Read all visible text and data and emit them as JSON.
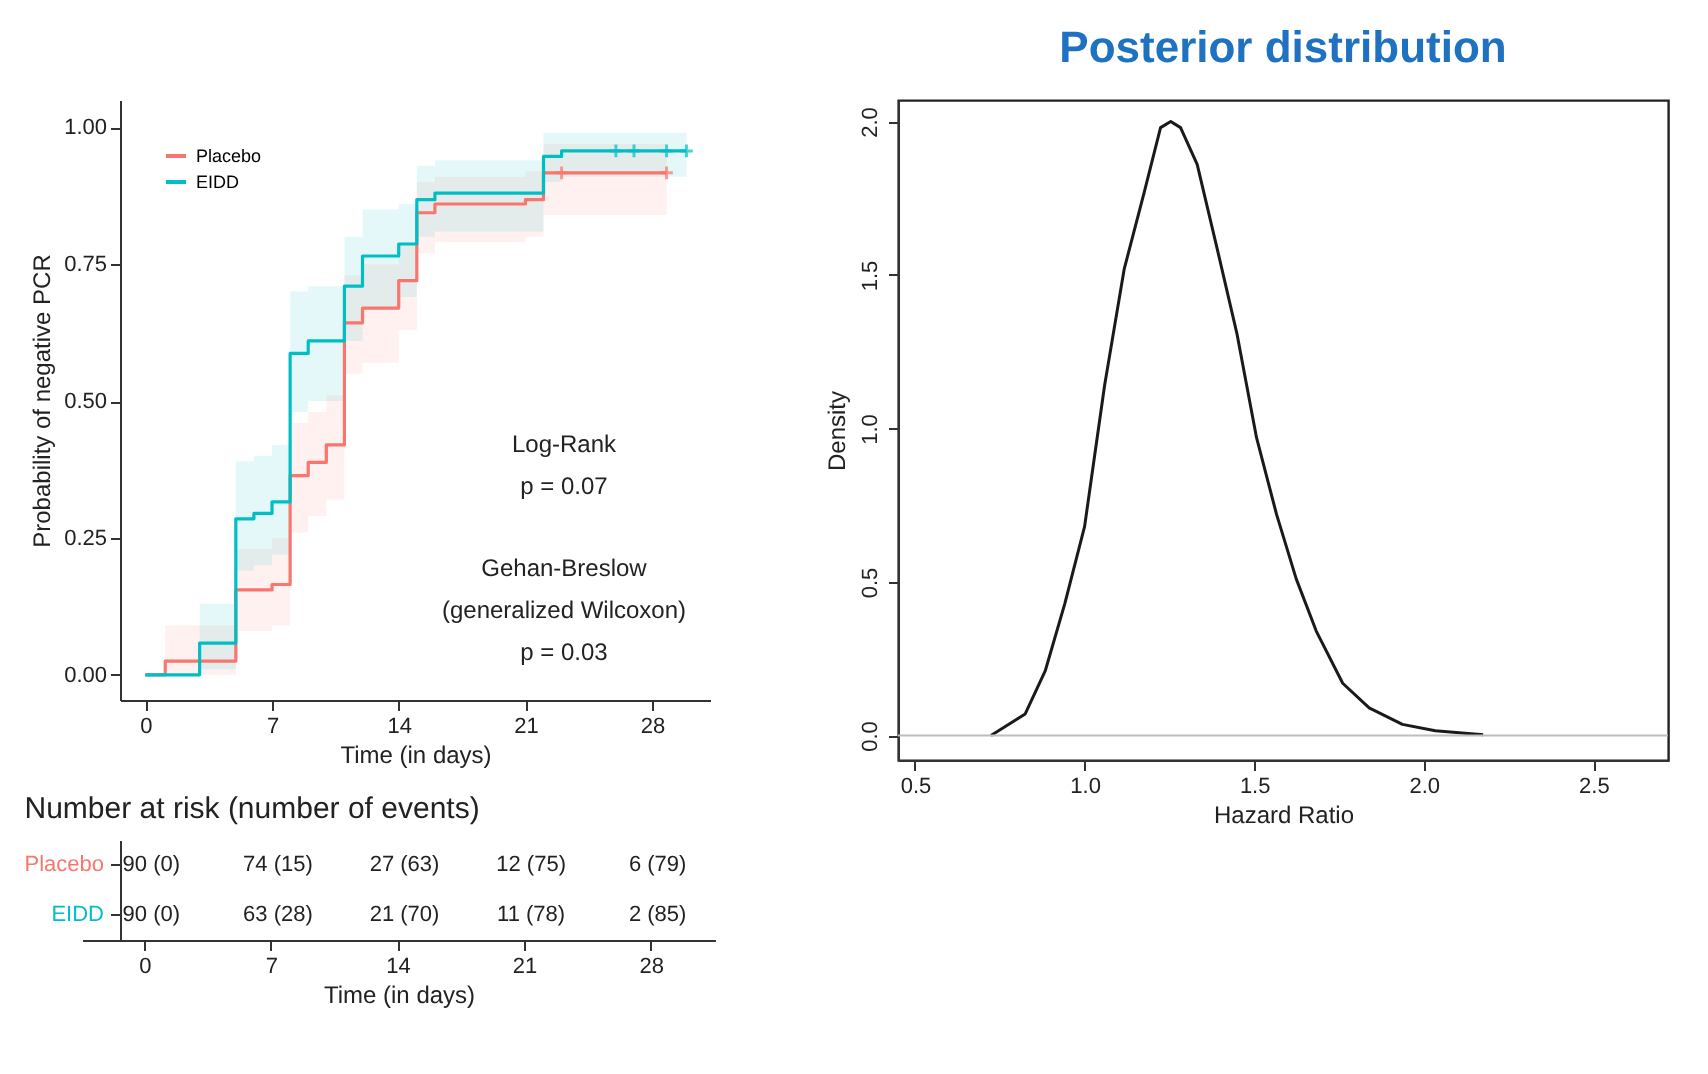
{
  "chart_data": [
    {
      "type": "step",
      "xlabel": "Time (in days)",
      "ylabel": "Probability of negative PCR",
      "xlim": [
        -1.4,
        31.2
      ],
      "ylim": [
        -0.046,
        1.05
      ],
      "xticks": [
        0,
        7,
        14,
        21,
        28
      ],
      "yticks": [
        {
          "value": 0,
          "label": "0.00"
        },
        {
          "value": 0.25,
          "label": "0.25"
        },
        {
          "value": 0.5,
          "label": "0.50"
        },
        {
          "value": 0.75,
          "label": "0.75"
        },
        {
          "value": 1,
          "label": "1.00"
        }
      ],
      "legend": "top left",
      "annotations": [
        "Log-Rank",
        "p =  0.07",
        "Gehan-Breslow",
        "(generalized Wilcoxon)",
        "p =  0.03"
      ],
      "series": [
        {
          "name": "Placebo",
          "color": "#f8766d",
          "x": [
            0,
            1.1,
            5,
            7,
            8,
            9,
            10,
            11,
            12,
            14,
            15,
            16,
            21,
            22,
            28.8
          ],
          "values": [
            0,
            0.025,
            0.155,
            0.165,
            0.364,
            0.388,
            0.42,
            0.643,
            0.67,
            0.72,
            0.844,
            0.86,
            0.868,
            0.917,
            0.917
          ],
          "lower": [
            0,
            0,
            0.08,
            0.09,
            0.26,
            0.29,
            0.32,
            0.55,
            0.57,
            0.63,
            0.77,
            0.79,
            0.8,
            0.84,
            0.84
          ],
          "upper": [
            0,
            0.09,
            0.23,
            0.25,
            0.46,
            0.48,
            0.51,
            0.73,
            0.75,
            0.79,
            0.9,
            0.91,
            0.92,
            0.97,
            0.97
          ]
        },
        {
          "name": "EIDD",
          "color": "#00bfc4",
          "x": [
            0,
            3,
            5,
            6,
            7,
            8,
            9,
            11,
            12,
            14,
            15,
            16,
            22,
            23,
            29.9
          ],
          "values": [
            0,
            0.058,
            0.285,
            0.295,
            0.316,
            0.587,
            0.61,
            0.71,
            0.765,
            0.787,
            0.868,
            0.88,
            0.947,
            0.957,
            0.957
          ],
          "lower": [
            0,
            0.01,
            0.19,
            0.2,
            0.22,
            0.48,
            0.5,
            0.61,
            0.67,
            0.69,
            0.8,
            0.81,
            0.9,
            0.91,
            0.91
          ],
          "upper": [
            0,
            0.13,
            0.39,
            0.4,
            0.42,
            0.7,
            0.71,
            0.8,
            0.85,
            0.86,
            0.93,
            0.94,
            0.99,
            0.99,
            0.99
          ]
        },
        {
          "type": "scatter",
          "color": "#f8766d",
          "marker": "cross",
          "x": [
            23,
            28.8
          ],
          "values": [
            0.917,
            0.917
          ]
        },
        {
          "type": "scatter",
          "color": "#00bfc4",
          "marker": "cross",
          "x": [
            26,
            27,
            28.8,
            29.9
          ],
          "values": [
            0.957,
            0.957,
            0.957,
            0.957
          ]
        }
      ]
    },
    {
      "type": "heatmap",
      "title": "Number at risk (number of events)",
      "xlabel": "Time (in days)",
      "categories": [
        "0",
        "7",
        "14",
        "21",
        "28"
      ],
      "y_categories": [
        "Placebo",
        "EIDD"
      ],
      "colors": [
        "#f8766d",
        "#00bfc4"
      ],
      "cells": [
        [
          null,
          null,
          null,
          null,
          null
        ],
        [
          null,
          null,
          null,
          null,
          null
        ]
      ],
      "cell_labels": [
        [
          "90 (0)",
          "74 (15)",
          "27 (63)",
          "12 (75)",
          "6 (79)"
        ],
        [
          "90 (0)",
          "63 (28)",
          "21 (70)",
          "11 (78)",
          "2 (85)"
        ]
      ]
    },
    {
      "type": "line",
      "title": "Posterior distribution",
      "xlabel": "Hazard Ratio",
      "ylabel": "Density",
      "xlim": [
        0.45,
        2.72
      ],
      "ylim": [
        -0.08,
        2.07
      ],
      "xticks": [
        {
          "value": 0.5,
          "label": "0.5"
        },
        {
          "value": 1,
          "label": "1.0"
        },
        {
          "value": 1.5,
          "label": "1.5"
        },
        {
          "value": 2,
          "label": "2.0"
        },
        {
          "value": 2.5,
          "label": "2.5"
        }
      ],
      "yticks": [
        {
          "value": 0,
          "label": "0.0"
        },
        {
          "value": 0.5,
          "label": "0.5"
        },
        {
          "value": 1,
          "label": "1.0"
        },
        {
          "value": 1.5,
          "label": "1.5"
        },
        {
          "value": 2,
          "label": "2.0"
        }
      ],
      "ref_lines": [
        {
          "axis": "y",
          "value": 0,
          "color": "#bebebe"
        }
      ],
      "series": [
        {
          "color": "#1a1a1a",
          "x": [
            0.724,
            0.825,
            0.884,
            0.942,
            1.0,
            1.059,
            1.117,
            1.176,
            1.224,
            1.254,
            1.283,
            1.332,
            1.39,
            1.449,
            1.507,
            1.566,
            1.624,
            1.683,
            1.761,
            1.839,
            1.937,
            2.034,
            2.175
          ],
          "values": [
            0,
            0.07,
            0.21,
            0.43,
            0.68,
            1.14,
            1.52,
            1.77,
            1.98,
            2.0,
            1.98,
            1.86,
            1.59,
            1.31,
            0.97,
            0.72,
            0.51,
            0.34,
            0.17,
            0.09,
            0.036,
            0.015,
            0.002
          ]
        }
      ]
    }
  ]
}
